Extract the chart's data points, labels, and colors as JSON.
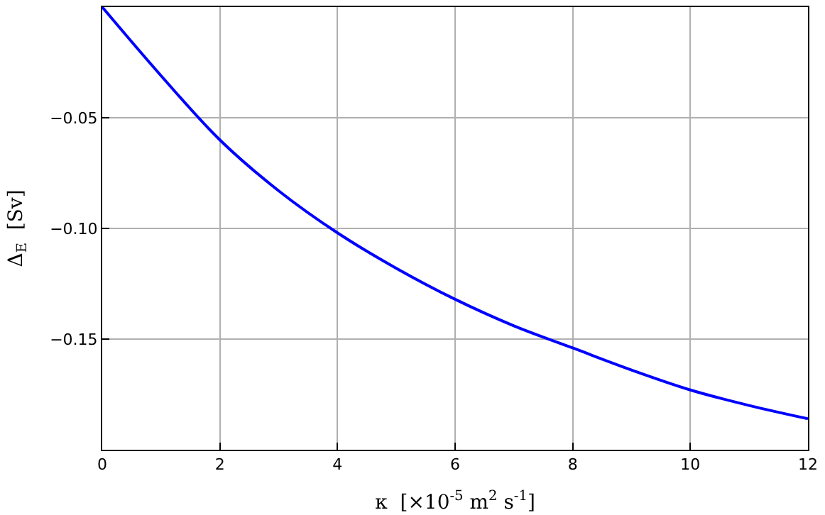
{
  "chart_data": {
    "type": "line",
    "xlabel": "κ  [×10$^{-5}$ m$^{2}$ s$^{-1}$]",
    "ylabel": "Δ$_{E}$  [Sv]",
    "x": [
      0,
      1,
      2,
      3,
      4,
      5,
      6,
      7,
      8,
      9,
      10,
      11,
      12
    ],
    "series": [
      {
        "color": "#0000ff",
        "values": [
          0,
          -0.031,
          -0.06,
          -0.083,
          -0.102,
          -0.118,
          -0.132,
          -0.144,
          -0.154,
          -0.164,
          -0.173,
          -0.18,
          -0.186
        ]
      }
    ],
    "xlim": [
      0,
      12
    ],
    "xticks": [
      0,
      2,
      4,
      6,
      8,
      10,
      12
    ],
    "ylim": [
      -0.2,
      0
    ],
    "yticks": [
      {
        "value": -0.05,
        "label": "−0.05"
      },
      {
        "value": -0.1,
        "label": "−0.10"
      },
      {
        "value": -0.15,
        "label": "−0.15"
      }
    ],
    "grid": true,
    "marker": "none",
    "line_style": "solid"
  }
}
